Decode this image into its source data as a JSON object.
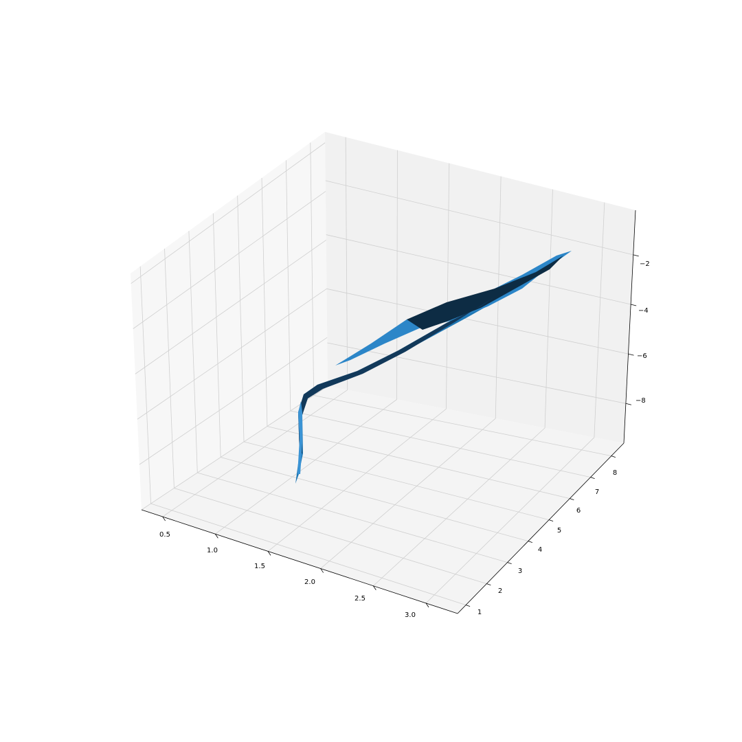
{
  "chart_data": {
    "type": "surface",
    "title": "",
    "xlabel": "",
    "ylabel": "",
    "zlabel": "",
    "grid": true,
    "surface_color": "#1f77b4",
    "x_ticks": [
      "0.5",
      "1.0",
      "1.5",
      "2.0",
      "2.5",
      "3.0"
    ],
    "y_ticks": [
      "1",
      "2",
      "3",
      "4",
      "5",
      "6",
      "7",
      "8"
    ],
    "z_ticks": [
      "−2",
      "−4",
      "−6",
      "−8"
    ],
    "xlim": [
      0.3,
      3.3
    ],
    "ylim": [
      0.6,
      8.6
    ],
    "zlim": [
      -9.6,
      -0.2
    ]
  }
}
